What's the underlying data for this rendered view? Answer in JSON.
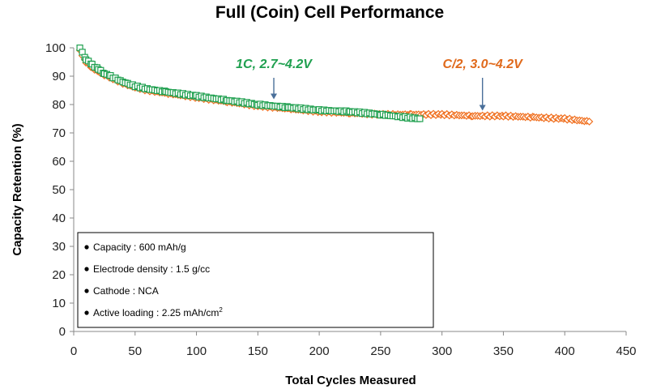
{
  "chart_data": {
    "type": "scatter",
    "title": "Full (Coin) Cell Performance",
    "xlabel": "Total Cycles Measured",
    "ylabel": "Capacity Retention (%)",
    "xlim": [
      0,
      450
    ],
    "ylim": [
      0,
      100
    ],
    "xticks": [
      0,
      50,
      100,
      150,
      200,
      250,
      300,
      350,
      400,
      450
    ],
    "yticks": [
      0,
      10,
      20,
      30,
      40,
      50,
      60,
      70,
      80,
      90,
      100
    ],
    "grid": false,
    "series": [
      {
        "color": "#f07020",
        "marker": "diamond",
        "x": [
          5,
          10,
          15,
          20,
          25,
          30,
          40,
          50,
          60,
          75,
          100,
          125,
          150,
          175,
          200,
          225,
          250,
          275,
          300,
          325,
          350,
          375,
          400,
          420
        ],
        "y": [
          99,
          95,
          93,
          91.5,
          90.5,
          89.5,
          87.5,
          86,
          85,
          84,
          82.5,
          81,
          79.5,
          78.5,
          77.5,
          77,
          76.5,
          76.5,
          76.5,
          76,
          76,
          75.5,
          75,
          74
        ]
      },
      {
        "color": "#20a050",
        "marker": "square",
        "x": [
          5,
          10,
          15,
          20,
          25,
          30,
          40,
          50,
          60,
          75,
          100,
          125,
          150,
          175,
          200,
          225,
          250,
          270,
          282
        ],
        "y": [
          100,
          96,
          94,
          92.5,
          91,
          90,
          88,
          86.5,
          85.5,
          84.5,
          83,
          81.5,
          80,
          79,
          78,
          77.5,
          76.5,
          75.5,
          75
        ]
      }
    ],
    "annotations": [
      {
        "text": "1C, 2.7~4.2V",
        "color": "#20a050",
        "x": 163,
        "y": 81
      },
      {
        "text": "C/2, 3.0~4.2V",
        "color": "#e06a1c",
        "x": 333,
        "y": 77
      }
    ],
    "legend_box": {
      "items": [
        "Capacity : 600 mAh/g",
        "Electrode density : 1.5 g/cc",
        "Cathode : NCA",
        "Active loading : 2.25 mAh/cm"
      ],
      "superscript": "2"
    }
  }
}
